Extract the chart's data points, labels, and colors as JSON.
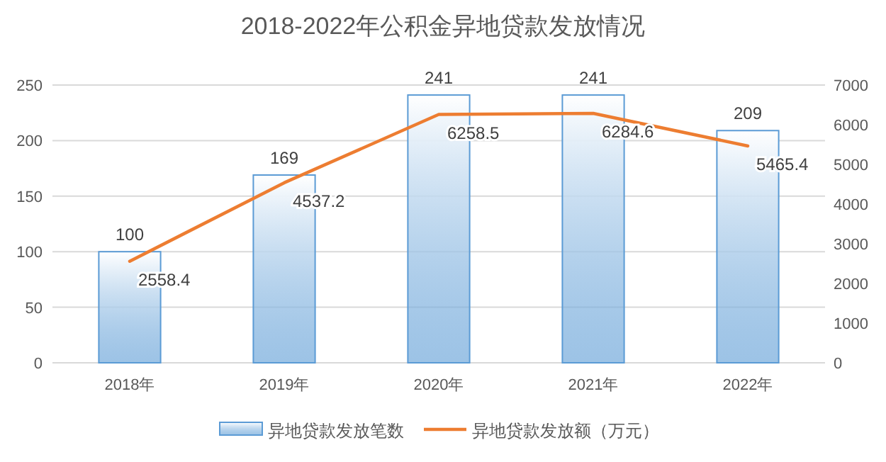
{
  "chart_data": {
    "type": "bar",
    "title": "2018-2022年公积金异地贷款发放情况",
    "categories": [
      "2018年",
      "2019年",
      "2020年",
      "2021年",
      "2022年"
    ],
    "series": [
      {
        "name": "异地贷款发放笔数",
        "color": "#5b9bd5",
        "values": [
          100,
          169,
          241,
          241,
          209
        ]
      },
      {
        "name": "异地贷款发放额（万元）",
        "type": "line",
        "axis": "y2",
        "color": "#ed7d31",
        "values": [
          2558.4,
          4537.2,
          6258.5,
          6284.6,
          5465.4
        ]
      }
    ],
    "ylim": [
      0,
      250
    ],
    "yticks": [
      0,
      50,
      100,
      150,
      200,
      250
    ],
    "y2lim": [
      0,
      7000
    ],
    "y2ticks": [
      0,
      1000,
      2000,
      3000,
      4000,
      5000,
      6000,
      7000
    ],
    "grid": "y",
    "legend": "bottom",
    "data_labels": true
  }
}
